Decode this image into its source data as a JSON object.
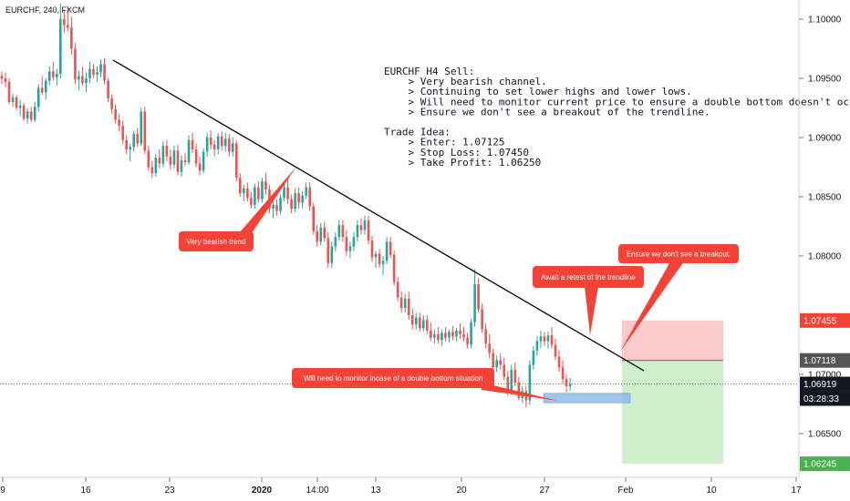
{
  "symbol_label": "EURCHF, 240, FXCM",
  "colors": {
    "up": "#26a69a",
    "down": "#ef5350",
    "candle_up": "#26a69a",
    "candle_down": "#ef5350",
    "stop_zone": "#f9c4c4",
    "profit_zone": "#c9ecc6",
    "demand_zone": "#90bbe6",
    "callout": "#f44336",
    "trendline": "#000000",
    "tag_red": "#f44336",
    "tag_gray": "#555555",
    "tag_dark": "#131722",
    "tag_green": "#4caf50"
  },
  "note": {
    "lines": [
      "EURCHF H4 Sell:",
      "    > Very bearish channel.",
      "    > Continuing to set lower highs and lower lows.",
      "    > Will need to monitor current price to ensure a double bottom doesn't occur.",
      "    > Ensure we don't see a breakout of the trendline.",
      "",
      "Trade Idea:",
      "    > Enter: 1.07125",
      "    > Stop Loss: 1.07450",
      "    > Take Profit: 1.06250"
    ]
  },
  "callouts": {
    "trend": "Very bearish trend",
    "retest": "Await a retest of the trendline",
    "breakout": "Ensure we don't see a breakout.",
    "double_bottom": "Will need to monitor incase of a double bottom situation"
  },
  "price_tags": {
    "stop": "1.07455",
    "entry": "1.07118",
    "current": "1.06919",
    "countdown": "03:28:33",
    "target": "1.06245"
  },
  "chart_data": {
    "type": "candlestick",
    "y_ticks": [
      "1.10000",
      "1.09500",
      "1.09000",
      "1.08500",
      "1.08000",
      "1.07000",
      "1.06500"
    ],
    "x_ticks": [
      "9",
      "16",
      "23",
      "2020",
      "14:00",
      "13",
      "20",
      "27",
      "Feb",
      "10",
      "17"
    ],
    "ylim": [
      1.0606,
      1.1016
    ],
    "trendline": {
      "start": [
        17,
        1.0965
      ],
      "end": [
        160,
        1.0708
      ]
    },
    "trade": {
      "entry": 1.07118,
      "stop": 1.07455,
      "target": 1.06245,
      "current": 1.06919
    },
    "demand_zone": [
      1.0676,
      1.0684
    ],
    "ohlc_note": "estimated 4H candles, sequential index",
    "candles": [
      [
        1.0952,
        1.0956,
        1.0945,
        1.095
      ],
      [
        1.095,
        1.0955,
        1.0942,
        1.0947
      ],
      [
        1.0947,
        1.095,
        1.0928,
        1.093
      ],
      [
        1.093,
        1.0937,
        1.0926,
        1.0934
      ],
      [
        1.0934,
        1.0936,
        1.0923,
        1.0925
      ],
      [
        1.0925,
        1.0932,
        1.0918,
        1.0927
      ],
      [
        1.0927,
        1.0929,
        1.0914,
        1.0916
      ],
      [
        1.0916,
        1.0925,
        1.0912,
        1.0922
      ],
      [
        1.0922,
        1.0926,
        1.0913,
        1.0915
      ],
      [
        1.0915,
        1.093,
        1.0913,
        1.0926
      ],
      [
        1.0926,
        1.0945,
        1.0922,
        1.0942
      ],
      [
        1.0942,
        1.0952,
        1.0936,
        1.0938
      ],
      [
        1.0938,
        1.095,
        1.0932,
        1.0948
      ],
      [
        1.0948,
        1.096,
        1.0944,
        1.0956
      ],
      [
        1.0956,
        1.0964,
        1.0948,
        1.0951
      ],
      [
        1.0951,
        1.0958,
        1.0944,
        1.0954
      ],
      [
        1.0954,
        1.1013,
        1.095,
        1.1
      ],
      [
        1.1,
        1.1008,
        1.0988,
        1.0995
      ],
      [
        1.0995,
        1.1011,
        1.099,
        1.0993
      ],
      [
        1.0993,
        1.1002,
        1.097,
        1.0975
      ],
      [
        1.0975,
        1.098,
        1.0945,
        1.0949
      ],
      [
        1.0949,
        1.0956,
        1.094,
        1.0952
      ],
      [
        1.0952,
        1.096,
        1.0944,
        1.0946
      ],
      [
        1.0946,
        1.0955,
        1.0938,
        1.095
      ],
      [
        1.095,
        1.0964,
        1.0946,
        1.0958
      ],
      [
        1.0958,
        1.0962,
        1.095,
        1.0953
      ],
      [
        1.0953,
        1.096,
        1.0947,
        1.0955
      ],
      [
        1.0955,
        1.0966,
        1.0951,
        1.0962
      ],
      [
        1.0962,
        1.0967,
        1.0945,
        1.0948
      ],
      [
        1.0948,
        1.095,
        1.093,
        1.0933
      ],
      [
        1.0933,
        1.0936,
        1.092,
        1.0924
      ],
      [
        1.0924,
        1.0928,
        1.0912,
        1.0915
      ],
      [
        1.0915,
        1.092,
        1.0905,
        1.091
      ],
      [
        1.091,
        1.0914,
        1.0895,
        1.0898
      ],
      [
        1.0898,
        1.0902,
        1.0886,
        1.089
      ],
      [
        1.089,
        1.0895,
        1.088,
        1.0892
      ],
      [
        1.0892,
        1.0906,
        1.0888,
        1.0903
      ],
      [
        1.0903,
        1.0908,
        1.0892,
        1.0895
      ],
      [
        1.0895,
        1.0925,
        1.0893,
        1.0922
      ],
      [
        1.0922,
        1.0926,
        1.0886,
        1.0889
      ],
      [
        1.0889,
        1.0893,
        1.0872,
        1.0875
      ],
      [
        1.0875,
        1.088,
        1.0866,
        1.087
      ],
      [
        1.087,
        1.0886,
        1.0867,
        1.0883
      ],
      [
        1.0883,
        1.089,
        1.0874,
        1.0878
      ],
      [
        1.0878,
        1.0897,
        1.0875,
        1.0893
      ],
      [
        1.0893,
        1.0898,
        1.088,
        1.0884
      ],
      [
        1.0884,
        1.089,
        1.0873,
        1.0877
      ],
      [
        1.0877,
        1.0893,
        1.0874,
        1.0889
      ],
      [
        1.0889,
        1.0894,
        1.0868,
        1.0871
      ],
      [
        1.0871,
        1.0885,
        1.0867,
        1.0881
      ],
      [
        1.0881,
        1.0887,
        1.0876,
        1.0879
      ],
      [
        1.0879,
        1.0902,
        1.0877,
        1.0898
      ],
      [
        1.0898,
        1.0904,
        1.0887,
        1.089
      ],
      [
        1.089,
        1.0895,
        1.0875,
        1.0878
      ],
      [
        1.0878,
        1.0884,
        1.0868,
        1.0872
      ],
      [
        1.0872,
        1.0891,
        1.087,
        1.0888
      ],
      [
        1.0888,
        1.0904,
        1.0884,
        1.09
      ],
      [
        1.09,
        1.0906,
        1.089,
        1.0894
      ],
      [
        1.0894,
        1.0898,
        1.0884,
        1.089
      ],
      [
        1.089,
        1.0904,
        1.0886,
        1.0901
      ],
      [
        1.0901,
        1.0905,
        1.0889,
        1.0893
      ],
      [
        1.0893,
        1.0904,
        1.0888,
        1.0899
      ],
      [
        1.0899,
        1.0903,
        1.0884,
        1.0888
      ],
      [
        1.0888,
        1.09,
        1.0884,
        1.0895
      ],
      [
        1.0895,
        1.0898,
        1.0863,
        1.0866
      ],
      [
        1.0866,
        1.087,
        1.085,
        1.0853
      ],
      [
        1.0853,
        1.086,
        1.0846,
        1.0857
      ],
      [
        1.0857,
        1.0862,
        1.0846,
        1.0849
      ],
      [
        1.0849,
        1.0854,
        1.084,
        1.0843
      ],
      [
        1.0843,
        1.0861,
        1.084,
        1.0858
      ],
      [
        1.0858,
        1.0863,
        1.0845,
        1.0848
      ],
      [
        1.0848,
        1.0866,
        1.0845,
        1.0863
      ],
      [
        1.0863,
        1.087,
        1.0852,
        1.0856
      ],
      [
        1.0856,
        1.086,
        1.0836,
        1.084
      ],
      [
        1.084,
        1.0846,
        1.0832,
        1.0843
      ],
      [
        1.0843,
        1.0848,
        1.0834,
        1.0838
      ],
      [
        1.0838,
        1.0852,
        1.0835,
        1.0849
      ],
      [
        1.0849,
        1.0862,
        1.0846,
        1.0858
      ],
      [
        1.0858,
        1.0866,
        1.0844,
        1.0848
      ],
      [
        1.0848,
        1.0852,
        1.0836,
        1.084
      ],
      [
        1.084,
        1.0857,
        1.0837,
        1.0853
      ],
      [
        1.0853,
        1.0858,
        1.084,
        1.0845
      ],
      [
        1.0845,
        1.0855,
        1.084,
        1.0851
      ],
      [
        1.0851,
        1.0862,
        1.0848,
        1.0858
      ],
      [
        1.0858,
        1.0862,
        1.0838,
        1.0842
      ],
      [
        1.0842,
        1.0845,
        1.0818,
        1.0821
      ],
      [
        1.0821,
        1.0826,
        1.0808,
        1.0812
      ],
      [
        1.0812,
        1.0828,
        1.0809,
        1.0824
      ],
      [
        1.0824,
        1.0829,
        1.0812,
        1.0815
      ],
      [
        1.0815,
        1.082,
        1.079,
        1.0794
      ],
      [
        1.0794,
        1.0812,
        1.079,
        1.0808
      ],
      [
        1.0808,
        1.082,
        1.0804,
        1.0816
      ],
      [
        1.0816,
        1.083,
        1.0813,
        1.0826
      ],
      [
        1.0826,
        1.083,
        1.0812,
        1.0816
      ],
      [
        1.0816,
        1.0822,
        1.08,
        1.0804
      ],
      [
        1.0804,
        1.0812,
        1.0798,
        1.0808
      ],
      [
        1.0808,
        1.082,
        1.0804,
        1.0816
      ],
      [
        1.0816,
        1.083,
        1.0812,
        1.0826
      ],
      [
        1.0826,
        1.0832,
        1.0818,
        1.0822
      ],
      [
        1.0822,
        1.0834,
        1.0818,
        1.083
      ],
      [
        1.083,
        1.0834,
        1.081,
        1.0813
      ],
      [
        1.0813,
        1.0817,
        1.0795,
        1.0799
      ],
      [
        1.0799,
        1.0804,
        1.079,
        1.0802
      ],
      [
        1.0802,
        1.0806,
        1.079,
        1.0793
      ],
      [
        1.0793,
        1.08,
        1.0784,
        1.0796
      ],
      [
        1.0796,
        1.0816,
        1.0793,
        1.0812
      ],
      [
        1.0812,
        1.0816,
        1.0798,
        1.0801
      ],
      [
        1.0801,
        1.0805,
        1.0775,
        1.0778
      ],
      [
        1.0778,
        1.0782,
        1.0762,
        1.0765
      ],
      [
        1.0765,
        1.077,
        1.0752,
        1.0756
      ],
      [
        1.0756,
        1.0768,
        1.0752,
        1.0764
      ],
      [
        1.0764,
        1.077,
        1.0746,
        1.075
      ],
      [
        1.075,
        1.0756,
        1.0738,
        1.0742
      ],
      [
        1.0742,
        1.0752,
        1.0738,
        1.0748
      ],
      [
        1.0748,
        1.0752,
        1.0736,
        1.0739
      ],
      [
        1.0739,
        1.075,
        1.0736,
        1.0746
      ],
      [
        1.0746,
        1.075,
        1.0734,
        1.0737
      ],
      [
        1.0737,
        1.0744,
        1.0728,
        1.0731
      ],
      [
        1.0731,
        1.0738,
        1.0726,
        1.0734
      ],
      [
        1.0734,
        1.074,
        1.0726,
        1.0729
      ],
      [
        1.0729,
        1.0738,
        1.0724,
        1.0735
      ],
      [
        1.0735,
        1.074,
        1.0728,
        1.0731
      ],
      [
        1.0731,
        1.0738,
        1.0727,
        1.0736
      ],
      [
        1.0736,
        1.0741,
        1.0729,
        1.0732
      ],
      [
        1.0732,
        1.0739,
        1.0728,
        1.0737
      ],
      [
        1.0737,
        1.0743,
        1.073,
        1.0734
      ],
      [
        1.0734,
        1.074,
        1.0728,
        1.0731
      ],
      [
        1.0731,
        1.0735,
        1.0722,
        1.0725
      ],
      [
        1.0725,
        1.0747,
        1.0722,
        1.0744
      ],
      [
        1.0744,
        1.0789,
        1.074,
        1.0776
      ],
      [
        1.0776,
        1.0781,
        1.0752,
        1.0755
      ],
      [
        1.0755,
        1.076,
        1.0735,
        1.0738
      ],
      [
        1.0738,
        1.0743,
        1.0722,
        1.0726
      ],
      [
        1.0726,
        1.0734,
        1.0714,
        1.0718
      ],
      [
        1.0718,
        1.0722,
        1.0702,
        1.0706
      ],
      [
        1.0706,
        1.0716,
        1.0702,
        1.0712
      ],
      [
        1.0712,
        1.0718,
        1.0704,
        1.0708
      ],
      [
        1.0708,
        1.0714,
        1.0695,
        1.0698
      ],
      [
        1.0698,
        1.0703,
        1.0682,
        1.0686
      ],
      [
        1.0686,
        1.0708,
        1.0683,
        1.0704
      ],
      [
        1.0704,
        1.071,
        1.069,
        1.0693
      ],
      [
        1.0693,
        1.0698,
        1.0678,
        1.068
      ],
      [
        1.068,
        1.069,
        1.0676,
        1.0686
      ],
      [
        1.0686,
        1.069,
        1.0672,
        1.0678
      ],
      [
        1.0678,
        1.0712,
        1.0674,
        1.0708
      ],
      [
        1.0708,
        1.0724,
        1.0704,
        1.072
      ],
      [
        1.072,
        1.0732,
        1.0716,
        1.0728
      ],
      [
        1.0728,
        1.0737,
        1.0722,
        1.0732
      ],
      [
        1.0732,
        1.0736,
        1.0724,
        1.0728
      ],
      [
        1.0728,
        1.0736,
        1.0722,
        1.0733
      ],
      [
        1.0733,
        1.074,
        1.0722,
        1.0725
      ],
      [
        1.0725,
        1.073,
        1.0712,
        1.0715
      ],
      [
        1.0715,
        1.072,
        1.0702,
        1.0706
      ],
      [
        1.0706,
        1.0712,
        1.0692,
        1.0696
      ],
      [
        1.0696,
        1.07,
        1.0685,
        1.069
      ],
      [
        1.069,
        1.0697,
        1.0686,
        1.0692
      ]
    ]
  }
}
